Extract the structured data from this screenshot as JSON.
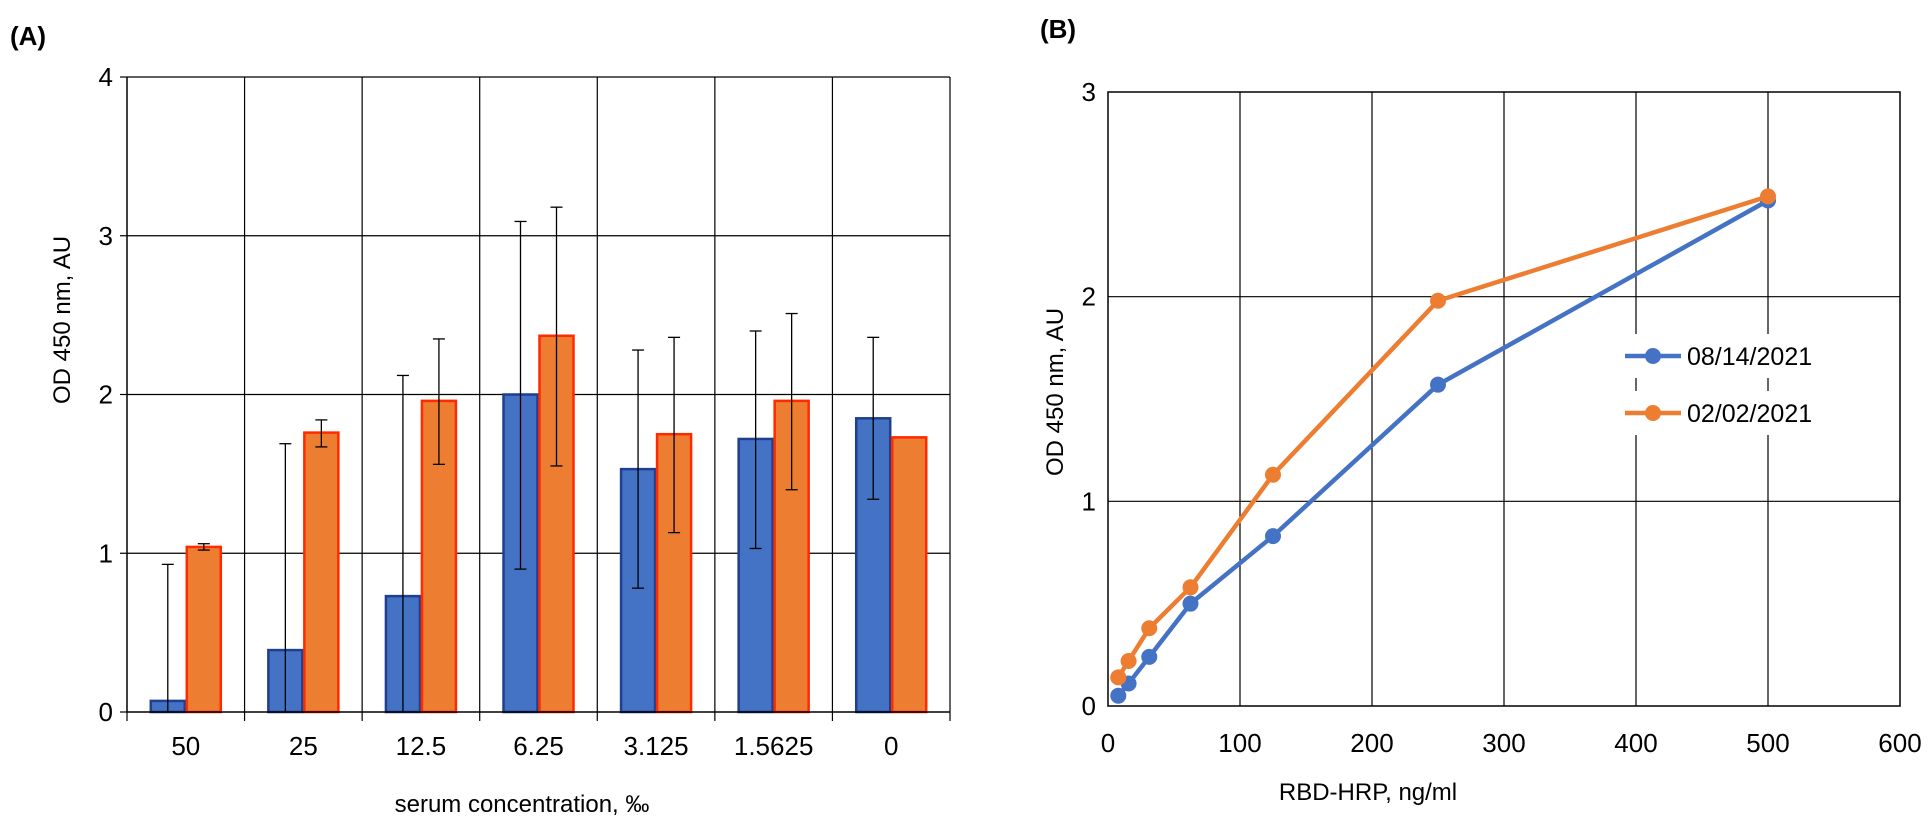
{
  "chart_data": [
    {
      "panel_label": "(A)",
      "type": "bar",
      "xlabel": "serum concentration, ‰",
      "ylabel": "OD 450 nm, AU",
      "ylim": [
        0,
        4
      ],
      "yticks": [
        "0",
        "1",
        "2",
        "3",
        "4"
      ],
      "categories": [
        "50",
        "25",
        "12.5",
        "6.25",
        "3.125",
        "1.5625",
        "0"
      ],
      "grid": true,
      "legend": "none",
      "series": [
        {
          "name": "blue",
          "color": "#4472c4",
          "edge": "#1f3f8f",
          "values": [
            0.07,
            0.39,
            0.73,
            2.0,
            1.53,
            1.72,
            1.85
          ],
          "err_low": [
            0.0,
            0.0,
            0.0,
            0.9,
            0.78,
            1.03,
            1.34
          ],
          "err_high": [
            0.93,
            1.69,
            2.12,
            3.09,
            2.28,
            2.4,
            2.36
          ]
        },
        {
          "name": "orange",
          "color": "#ed7d31",
          "edge": "#ff2a00",
          "values": [
            1.04,
            1.76,
            1.96,
            2.37,
            1.75,
            1.96,
            1.73
          ],
          "err_low": [
            1.02,
            1.67,
            1.56,
            1.55,
            1.13,
            1.4,
            null
          ],
          "err_high": [
            1.06,
            1.84,
            2.35,
            3.18,
            2.36,
            2.51,
            null
          ]
        }
      ]
    },
    {
      "panel_label": "(B)",
      "type": "line",
      "xlabel": "RBD-HRP, ng/ml",
      "ylabel": "OD 450 nm, AU",
      "xlim": [
        0,
        600
      ],
      "ylim": [
        0,
        3
      ],
      "xticks": [
        "0",
        "100",
        "200",
        "300",
        "400",
        "500",
        "600"
      ],
      "yticks": [
        "0",
        "1",
        "2",
        "3"
      ],
      "grid": true,
      "legend": "right",
      "series": [
        {
          "name": "08/14/2021",
          "color": "#4472c4",
          "x": [
            7.8,
            15.6,
            31.25,
            62.5,
            125,
            250,
            500
          ],
          "y": [
            0.05,
            0.11,
            0.24,
            0.5,
            0.83,
            1.57,
            2.47
          ]
        },
        {
          "name": "02/02/2021",
          "color": "#ed7d31",
          "x": [
            7.8,
            15.6,
            31.25,
            62.5,
            125,
            250,
            500
          ],
          "y": [
            0.14,
            0.22,
            0.38,
            0.58,
            1.13,
            1.98,
            2.49
          ]
        }
      ]
    }
  ]
}
